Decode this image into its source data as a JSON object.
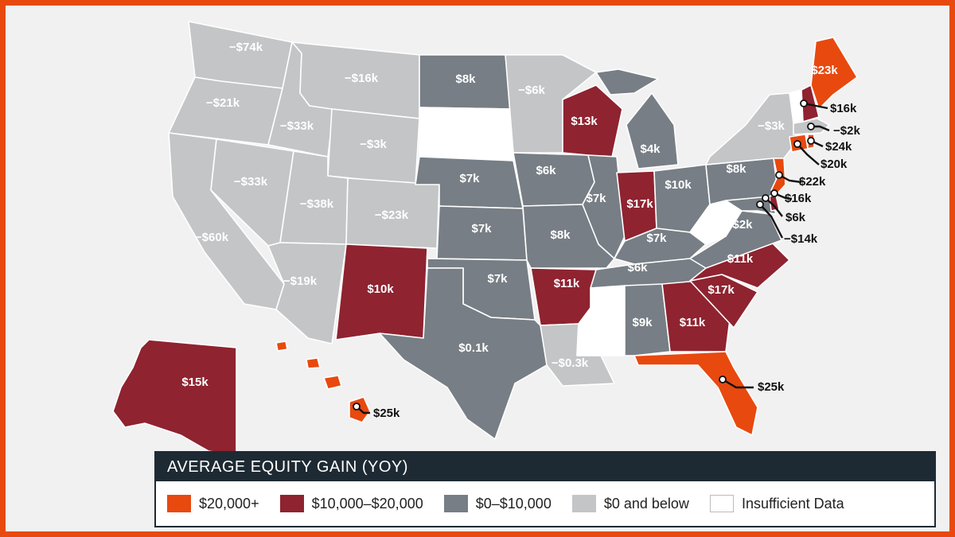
{
  "legend": {
    "title": "AVERAGE EQUITY GAIN (YOY)",
    "items": [
      {
        "label": "$20,000+",
        "color": "#e8490f"
      },
      {
        "label": "$10,000–$20,000",
        "color": "#8f2330"
      },
      {
        "label": "$0–$10,000",
        "color": "#777e85"
      },
      {
        "label": "$0 and below",
        "color": "#c3c5c7"
      },
      {
        "label": "Insufficient Data",
        "color": "#ffffff"
      }
    ]
  },
  "states": {
    "WA": "−$74k",
    "OR": "−$21k",
    "CA": "−$60k",
    "NV": "−$33k",
    "ID": "−$33k",
    "MT": "−$16k",
    "WY": "−$3k",
    "UT": "−$38k",
    "AZ": "−$19k",
    "CO": "−$23k",
    "NM": "$10k",
    "ND": "$8k",
    "NE": "$7k",
    "KS": "$7k",
    "OK": "$7k",
    "TX": "$0.1k",
    "MN": "−$6k",
    "IA": "$6k",
    "MO": "$8k",
    "AR": "$11k",
    "LA": "−$0.3k",
    "WI": "$13k",
    "IL": "$7k",
    "IN": "$17k",
    "MI": "$4k",
    "OH": "$10k",
    "KY": "$7k",
    "TN": "$6k",
    "AL": "$9k",
    "GA": "$11k",
    "FL": "$25k",
    "SC": "$17k",
    "NC": "$11k",
    "VA": "$2k",
    "PA": "$8k",
    "NY": "−$3k",
    "ME": "$23k",
    "AK": "$15k",
    "HI": "$25k"
  },
  "callouts": {
    "NH": "$16k",
    "MA": "−$2k",
    "RI": "$24k",
    "CT": "$20k",
    "NJ": "$22k",
    "DE": "$16k",
    "MD": "$6k",
    "DC": "−$14k",
    "FL": "$25k",
    "HI": "$25k"
  }
}
